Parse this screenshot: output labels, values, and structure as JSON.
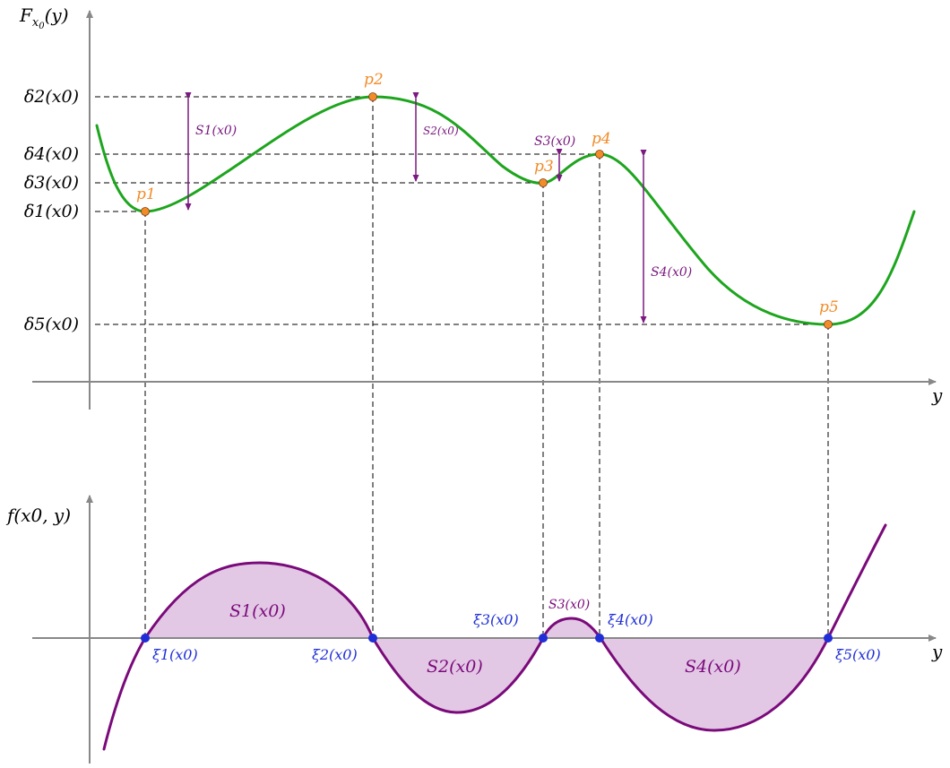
{
  "colors": {
    "axis": "#888888",
    "curve_F": "#1ea51e",
    "curve_f": "#7a0a7a",
    "fill_f": "#e3c8e6",
    "arrow": "#7a1a80",
    "points_p": "#f28c28",
    "points_xi": "#1f2ed6",
    "dashed": "#000000"
  },
  "top_plot": {
    "ylabel": "F_{x_0}(y)",
    "xlabel": "y",
    "levels": [
      {
        "key": "d2",
        "label": "δ2(x0)"
      },
      {
        "key": "d4",
        "label": "δ4(x0)"
      },
      {
        "key": "d3",
        "label": "δ3(x0)"
      },
      {
        "key": "d1",
        "label": "δ1(x0)"
      },
      {
        "key": "d5",
        "label": "δ5(x0)"
      }
    ],
    "points": [
      {
        "key": "p1",
        "label": "p1"
      },
      {
        "key": "p2",
        "label": "p2"
      },
      {
        "key": "p3",
        "label": "p3"
      },
      {
        "key": "p4",
        "label": "p4"
      },
      {
        "key": "p5",
        "label": "p5"
      }
    ],
    "gaps": [
      {
        "key": "S1",
        "label": "S1(x0)"
      },
      {
        "key": "S2",
        "label": "S2(x0)"
      },
      {
        "key": "S3",
        "label": "S3(x0)"
      },
      {
        "key": "S4",
        "label": "S4(x0)"
      }
    ]
  },
  "bottom_plot": {
    "ylabel": "f(x0, y)",
    "xlabel": "y",
    "roots": [
      {
        "key": "xi1",
        "label": "ξ1(x0)"
      },
      {
        "key": "xi2",
        "label": "ξ2(x0)"
      },
      {
        "key": "xi3",
        "label": "ξ3(x0)"
      },
      {
        "key": "xi4",
        "label": "ξ4(x0)"
      },
      {
        "key": "xi5",
        "label": "ξ5(x0)"
      }
    ],
    "areas": [
      {
        "key": "A1",
        "label": "S1(x0)"
      },
      {
        "key": "A2",
        "label": "S2(x0)"
      },
      {
        "key": "A3",
        "label": "S3(x0)"
      },
      {
        "key": "A4",
        "label": "S4(x0)"
      }
    ]
  }
}
